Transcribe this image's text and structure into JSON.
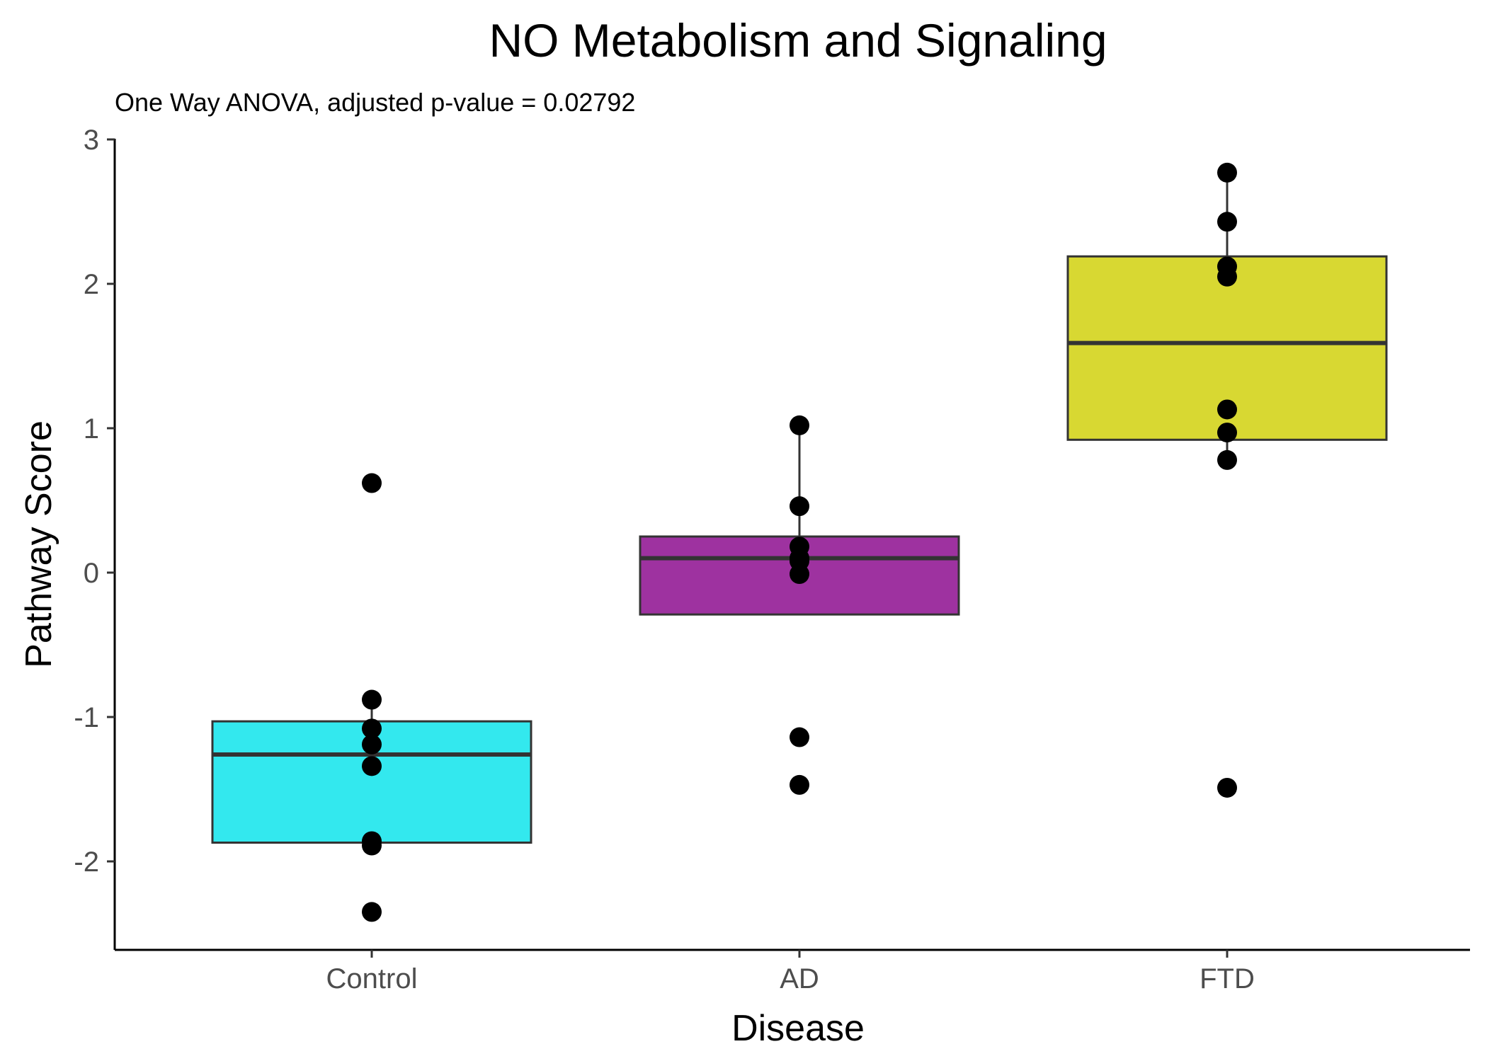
{
  "chart_data": {
    "type": "box",
    "title": "NO Metabolism and Signaling",
    "subtitle": "One Way ANOVA, adjusted p-value = 0.02792",
    "xlabel": "Disease",
    "ylabel": "Pathway Score",
    "categories": [
      "Control",
      "AD",
      "FTD"
    ],
    "ylim": [
      -2.6,
      3.0
    ],
    "yticks": [
      -2,
      -1,
      0,
      1,
      2,
      3
    ],
    "ytick_labels": [
      "-2",
      "-1",
      "0",
      "1",
      "2",
      "3"
    ],
    "grid": false,
    "legend": "none",
    "boxes": [
      {
        "category": "Control",
        "color": "#33e8ee",
        "q1": -1.87,
        "median": -1.26,
        "q3": -1.03,
        "whisker_low": -1.87,
        "whisker_high": -0.88,
        "points": [
          0.62,
          -0.88,
          -1.08,
          -1.19,
          -1.34,
          -1.86,
          -1.89,
          -2.35
        ]
      },
      {
        "category": "AD",
        "color": "#9e32a0",
        "q1": -0.29,
        "median": 0.1,
        "q3": 0.25,
        "whisker_low": -0.29,
        "whisker_high": 1.02,
        "points": [
          1.02,
          0.46,
          0.18,
          0.1,
          0.08,
          -0.01,
          -1.14,
          -1.47
        ]
      },
      {
        "category": "FTD",
        "color": "#d8d832",
        "q1": 0.92,
        "median": 1.59,
        "q3": 2.19,
        "whisker_low": 0.78,
        "whisker_high": 2.77,
        "points": [
          2.77,
          2.43,
          2.12,
          2.05,
          1.13,
          0.97,
          0.78,
          -1.49
        ]
      }
    ]
  }
}
